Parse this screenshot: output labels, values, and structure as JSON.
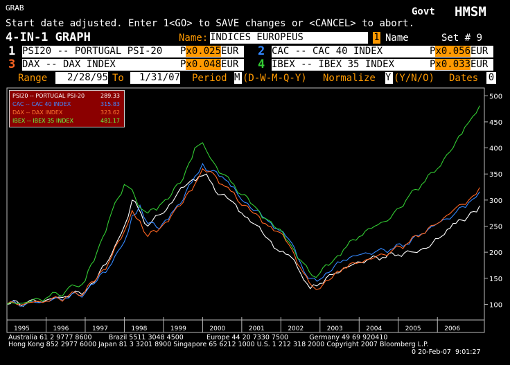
{
  "header": {
    "grab": "GRAB",
    "govt": "Govt",
    "hmsm": "HMSM",
    "message": "Start date adjusted. Enter 1<GO> to SAVE changes or <CANCEL> to abort.",
    "graph_title": "4-IN-1 GRAPH",
    "name_label": "Name:",
    "name_value": "INDICES EUROPEUS",
    "name_mode_num": "1",
    "name_mode_label": "Name",
    "set_label": "Set # 9"
  },
  "securities": [
    {
      "num": "1",
      "name": "PSI20 -- PORTUGAL PSI-20",
      "px": "P",
      "val": "x0.025",
      "cur": "EUR",
      "num_color": "#ffffff"
    },
    {
      "num": "2",
      "name": "CAC -- CAC 40 INDEX",
      "px": "P",
      "val": "x0.056",
      "cur": "EUR",
      "num_color": "#3388ff"
    },
    {
      "num": "3",
      "name": "DAX -- DAX INDEX",
      "px": "P",
      "val": "x0.048",
      "cur": "EUR",
      "num_color": "#ff6622"
    },
    {
      "num": "4",
      "name": "IBEX -- IBEX 35 INDEX",
      "px": "P",
      "val": "x0.033",
      "cur": "EUR",
      "num_color": "#33cc33"
    }
  ],
  "range_bar": {
    "range_label": "Range",
    "start": "2/28/95",
    "to_label": "To",
    "end": "1/31/07",
    "period_label": "Period",
    "period_value": "M",
    "period_options": "(D-W-M-Q-Y)",
    "normalize_label": "Normalize",
    "normalize_value": "Y",
    "normalize_options": "(Y/N/O)",
    "dates_label": "Dates",
    "dates_value": "0"
  },
  "legend": [
    {
      "label": "PSI20 -- PORTUGAL PSI-20",
      "value": "289.33",
      "color": "#ffffff"
    },
    {
      "label": "CAC -- CAC 40 INDEX",
      "value": "315.83",
      "color": "#4488ff"
    },
    {
      "label": "DAX -- DAX INDEX",
      "value": "323.62",
      "color": "#ff7733"
    },
    {
      "label": "IBEX -- IBEX 35 INDEX",
      "value": "481.17",
      "color": "#66ff44"
    }
  ],
  "chart_data": {
    "type": "line",
    "y_ticks": [
      "100",
      "150",
      "200",
      "250",
      "300",
      "350",
      "400",
      "450",
      "500"
    ],
    "ylim": [
      70,
      515
    ],
    "xlim": [
      1995.0,
      2007.2
    ],
    "x_labels": [
      "1995",
      "1996",
      "1997",
      "1998",
      "1999",
      "2000",
      "2001",
      "2002",
      "2003",
      "2004",
      "2005",
      "2006"
    ],
    "grid": false,
    "legend_position": "top-left",
    "series": [
      {
        "name": "PSI20 -- PORTUGAL PSI-20",
        "color": "#ffffff",
        "x": [
          1995.0,
          1995.5,
          1996.0,
          1996.5,
          1997.0,
          1997.3,
          1997.6,
          1998.0,
          1998.2,
          1998.35,
          1998.6,
          1998.8,
          1999.0,
          1999.3,
          1999.6,
          1999.9,
          2000.1,
          2000.4,
          2000.7,
          2001.0,
          2001.3,
          2001.6,
          2001.9,
          2002.2,
          2002.5,
          2002.75,
          2003.0,
          2003.4,
          2003.8,
          2004.2,
          2004.6,
          2005.0,
          2005.4,
          2005.8,
          2006.1,
          2006.4,
          2006.7,
          2007.08
        ],
        "y": [
          100,
          103,
          108,
          115,
          125,
          150,
          185,
          250,
          300,
          285,
          250,
          270,
          275,
          305,
          330,
          345,
          350,
          310,
          300,
          275,
          255,
          230,
          205,
          195,
          160,
          130,
          140,
          160,
          175,
          185,
          190,
          195,
          200,
          210,
          230,
          255,
          260,
          289
        ]
      },
      {
        "name": "CAC -- CAC 40 INDEX",
        "color": "#3388ff",
        "x": [
          1995.0,
          1995.5,
          1996.0,
          1996.5,
          1997.0,
          1997.3,
          1997.6,
          1998.0,
          1998.2,
          1998.4,
          1998.6,
          1998.9,
          1999.2,
          1999.5,
          1999.8,
          2000.0,
          2000.2,
          2000.5,
          2000.8,
          2001.0,
          2001.3,
          2001.6,
          2001.9,
          2002.2,
          2002.5,
          2002.7,
          2003.0,
          2003.3,
          2003.6,
          2004.0,
          2004.4,
          2004.8,
          2005.2,
          2005.6,
          2006.0,
          2006.4,
          2006.8,
          2007.08
        ],
        "y": [
          100,
          101,
          106,
          112,
          122,
          145,
          170,
          220,
          270,
          290,
          255,
          245,
          275,
          300,
          345,
          370,
          355,
          345,
          325,
          300,
          280,
          265,
          245,
          225,
          180,
          150,
          148,
          165,
          185,
          195,
          200,
          205,
          215,
          235,
          255,
          270,
          295,
          316
        ]
      },
      {
        "name": "DAX -- DAX INDEX",
        "color": "#ff6622",
        "x": [
          1995.0,
          1995.5,
          1996.0,
          1996.5,
          1997.0,
          1997.3,
          1997.6,
          1998.0,
          1998.2,
          1998.4,
          1998.6,
          1998.9,
          1999.2,
          1999.5,
          1999.8,
          2000.0,
          2000.2,
          2000.5,
          2000.8,
          2001.0,
          2001.3,
          2001.6,
          2001.9,
          2002.2,
          2002.5,
          2002.8,
          2003.0,
          2003.3,
          2003.6,
          2004.0,
          2004.4,
          2004.8,
          2005.2,
          2005.6,
          2006.0,
          2006.4,
          2006.8,
          2007.08
        ],
        "y": [
          100,
          102,
          106,
          113,
          125,
          150,
          180,
          240,
          280,
          260,
          230,
          245,
          270,
          295,
          330,
          360,
          355,
          330,
          315,
          290,
          275,
          255,
          240,
          215,
          170,
          135,
          130,
          150,
          170,
          180,
          190,
          200,
          215,
          235,
          255,
          280,
          300,
          324
        ]
      },
      {
        "name": "IBEX -- IBEX 35 INDEX",
        "color": "#33cc33",
        "x": [
          1995.0,
          1995.5,
          1996.0,
          1996.5,
          1997.0,
          1997.3,
          1997.6,
          1998.0,
          1998.2,
          1998.35,
          1998.6,
          1998.9,
          1999.2,
          1999.5,
          1999.8,
          2000.0,
          2000.2,
          2000.5,
          2000.8,
          2001.0,
          2001.3,
          2001.6,
          2001.9,
          2002.2,
          2002.5,
          2002.8,
          2003.0,
          2003.3,
          2003.6,
          2004.0,
          2004.4,
          2004.8,
          2005.2,
          2005.6,
          2006.0,
          2006.4,
          2006.7,
          2006.9,
          2007.08
        ],
        "y": [
          100,
          104,
          112,
          125,
          145,
          200,
          260,
          330,
          320,
          290,
          275,
          290,
          310,
          340,
          400,
          410,
          380,
          350,
          330,
          310,
          290,
          265,
          245,
          220,
          185,
          155,
          160,
          180,
          205,
          230,
          250,
          265,
          300,
          330,
          360,
          400,
          440,
          460,
          481
        ]
      }
    ]
  },
  "footer": {
    "line1": "Australia 61 2 9777 8600        Brazil 5511 3048 4500           Europe 44 20 7330 7500          Germany 49 69 920410",
    "line2": "Hong Kong 852 2977 6000 Japan 81 3 3201 8900 Singapore 65 6212 1000 U.S. 1 212 318 2000 Copyright 2007 Bloomberg L.P.",
    "line3": "0 20-Feb-07  9:01:27"
  }
}
